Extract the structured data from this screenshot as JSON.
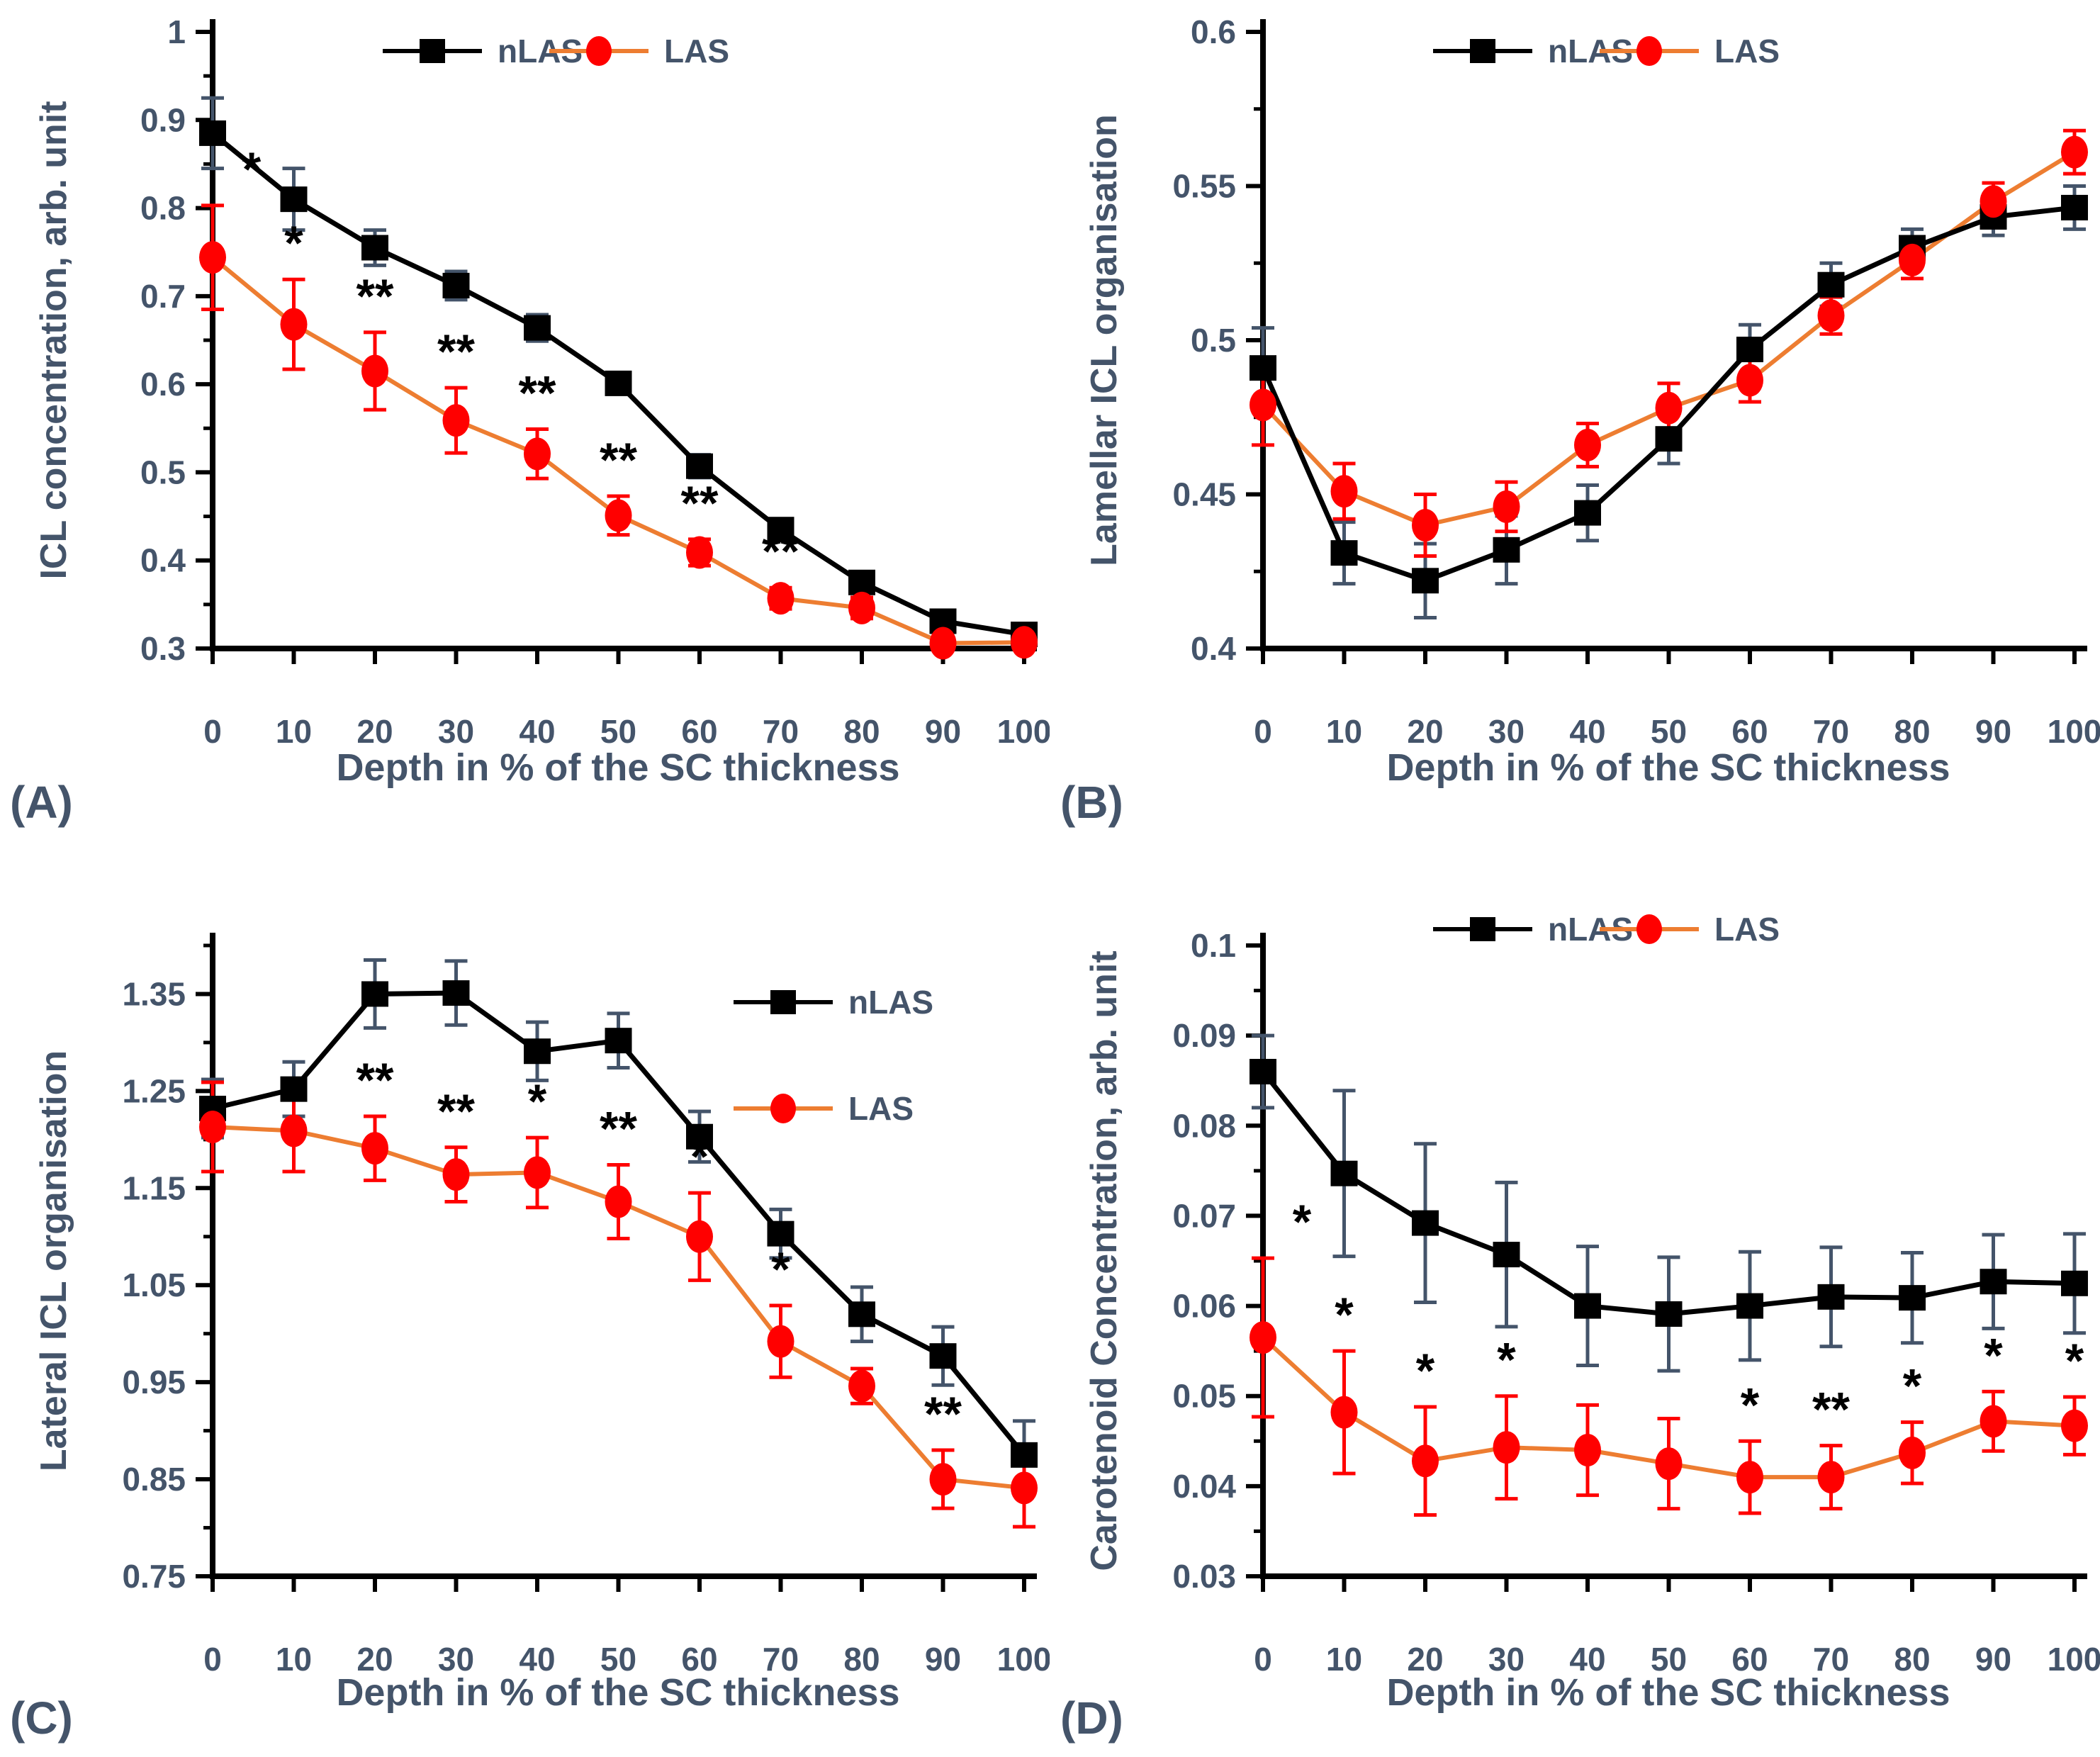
{
  "figure": {
    "xlabel": "Depth in % of the SC thickness",
    "legend_labels": [
      "nLAS",
      "LAS"
    ],
    "colors": {
      "text": "#44546A",
      "axis": "#000000",
      "sig_marker": "#000000",
      "nlas_line": "#000000",
      "nlas_marker": "#000000",
      "nlas_errorbar": "#44546A",
      "las_line": "#ED7D31",
      "las_marker": "#FF0000",
      "las_errorbar": "#FF0000"
    }
  },
  "chart_data": [
    {
      "type": "line",
      "panel_label": "(A)",
      "ylabel": "ICL concentration, arb. unit",
      "xlabel": "Depth in % of the SC thickness",
      "x": [
        0,
        10,
        20,
        30,
        40,
        50,
        60,
        70,
        80,
        90,
        100
      ],
      "xtick_labels": [
        "0",
        "10",
        "20",
        "30",
        "40",
        "50",
        "60",
        "70",
        "80",
        "90",
        "100"
      ],
      "ylim": [
        0.3,
        1.0
      ],
      "yticks": [
        0.3,
        0.4,
        0.5,
        0.6,
        0.7,
        0.8,
        0.9,
        1.0
      ],
      "ytick_labels": [
        "0.3",
        "0.4",
        "0.5",
        "0.6",
        "0.7",
        "0.8",
        "0.9",
        "1"
      ],
      "minor_tick_step": 0.05,
      "legend_position": "top",
      "grid": false,
      "series": [
        {
          "name": "nLAS",
          "values": [
            0.885,
            0.81,
            0.755,
            0.712,
            0.664,
            0.601,
            0.507,
            0.435,
            0.375,
            0.331,
            0.316
          ],
          "errors": [
            0.04,
            0.035,
            0.02,
            0.016,
            0.015,
            0.012,
            0.013,
            0.01,
            0.01,
            0.008,
            0.007
          ]
        },
        {
          "name": "LAS",
          "values": [
            0.744,
            0.668,
            0.615,
            0.559,
            0.521,
            0.451,
            0.409,
            0.357,
            0.346,
            0.306,
            0.307
          ],
          "errors": [
            0.059,
            0.051,
            0.044,
            0.037,
            0.028,
            0.022,
            0.015,
            0.012,
            0.012,
            0.008,
            0.008
          ]
        }
      ],
      "significance": [
        "*",
        "*",
        "**",
        "**",
        "**",
        "**",
        "**",
        "**",
        "",
        "",
        ""
      ]
    },
    {
      "type": "line",
      "panel_label": "(B)",
      "ylabel": "Lamellar ICL organisation",
      "xlabel": "Depth in % of the SC thickness",
      "x": [
        0,
        10,
        20,
        30,
        40,
        50,
        60,
        70,
        80,
        90,
        100
      ],
      "xtick_labels": [
        "0",
        "10",
        "20",
        "30",
        "40",
        "50",
        "60",
        "70",
        "80",
        "90",
        "100"
      ],
      "ylim": [
        0.4,
        0.6
      ],
      "yticks": [
        0.4,
        0.45,
        0.5,
        0.55,
        0.6
      ],
      "ytick_labels": [
        "0.4",
        "0.45",
        "0.5",
        "0.55",
        "0.6"
      ],
      "minor_tick_step": 0.025,
      "legend_position": "top",
      "grid": false,
      "series": [
        {
          "name": "nLAS",
          "values": [
            0.491,
            0.431,
            0.422,
            0.432,
            0.444,
            0.468,
            0.497,
            0.518,
            0.53,
            0.54,
            0.543
          ],
          "errors": [
            0.013,
            0.01,
            0.012,
            0.011,
            0.009,
            0.008,
            0.008,
            0.007,
            0.006,
            0.006,
            0.007
          ]
        },
        {
          "name": "LAS",
          "values": [
            0.479,
            0.451,
            0.44,
            0.446,
            0.466,
            0.478,
            0.487,
            0.508,
            0.526,
            0.545,
            0.561
          ],
          "errors": [
            0.013,
            0.009,
            0.01,
            0.008,
            0.007,
            0.008,
            0.007,
            0.006,
            0.006,
            0.006,
            0.007
          ]
        }
      ],
      "significance": [
        "",
        "",
        "",
        "",
        "",
        "",
        "",
        "",
        "",
        "",
        ""
      ]
    },
    {
      "type": "line",
      "panel_label": "(C)",
      "ylabel": "Lateral ICL organisation",
      "xlabel": "Depth in % of the SC thickness",
      "x": [
        0,
        10,
        20,
        30,
        40,
        50,
        60,
        70,
        80,
        90,
        100
      ],
      "xtick_labels": [
        "0",
        "10",
        "20",
        "30",
        "40",
        "50",
        "60",
        "70",
        "80",
        "90",
        "100"
      ],
      "ylim": [
        0.75,
        1.4
      ],
      "yticks": [
        0.75,
        0.85,
        0.95,
        1.05,
        1.15,
        1.25,
        1.35
      ],
      "ytick_labels": [
        "0.75",
        "0.85",
        "0.95",
        "1.05",
        "1.15",
        "1.25",
        "1.35"
      ],
      "minor_tick_step": 0.05,
      "legend_position": "right",
      "grid": false,
      "series": [
        {
          "name": "nLAS",
          "values": [
            1.232,
            1.252,
            1.35,
            1.351,
            1.291,
            1.302,
            1.203,
            1.103,
            1.02,
            0.977,
            0.875
          ],
          "errors": [
            0.03,
            0.028,
            0.035,
            0.033,
            0.03,
            0.028,
            0.026,
            0.025,
            0.028,
            0.03,
            0.035
          ]
        },
        {
          "name": "LAS",
          "values": [
            1.213,
            1.209,
            1.191,
            1.164,
            1.166,
            1.136,
            1.1,
            0.992,
            0.946,
            0.85,
            0.841
          ],
          "errors": [
            0.046,
            0.042,
            0.033,
            0.028,
            0.036,
            0.038,
            0.045,
            0.037,
            0.018,
            0.03,
            0.04
          ]
        }
      ],
      "significance": [
        "",
        "",
        "**",
        "**",
        "*",
        "**",
        "*",
        "*",
        "",
        "**",
        ""
      ]
    },
    {
      "type": "line",
      "panel_label": "(D)",
      "ylabel": "Carotenoid Concentration, arb. unit",
      "xlabel": "Depth in % of the SC thickness",
      "x": [
        0,
        10,
        20,
        30,
        40,
        50,
        60,
        70,
        80,
        90,
        100
      ],
      "xtick_labels": [
        "0",
        "10",
        "20",
        "30",
        "40",
        "50",
        "60",
        "70",
        "80",
        "90",
        "100"
      ],
      "ylim": [
        0.03,
        0.1
      ],
      "yticks": [
        0.03,
        0.04,
        0.05,
        0.06,
        0.07,
        0.08,
        0.09,
        0.1
      ],
      "ytick_labels": [
        "0.03",
        "0.04",
        "0.05",
        "0.06",
        "0.07",
        "0.08",
        "0.09",
        "0.1"
      ],
      "minor_tick_step": 0.005,
      "legend_position": "top",
      "grid": false,
      "series": [
        {
          "name": "nLAS",
          "values": [
            0.086,
            0.0747,
            0.0692,
            0.0657,
            0.06,
            0.0591,
            0.06,
            0.061,
            0.0609,
            0.0627,
            0.0625
          ],
          "errors": [
            0.004,
            0.0092,
            0.0088,
            0.008,
            0.0066,
            0.0063,
            0.006,
            0.0055,
            0.005,
            0.0052,
            0.0055
          ]
        },
        {
          "name": "LAS",
          "values": [
            0.0565,
            0.0482,
            0.0428,
            0.0443,
            0.044,
            0.0425,
            0.041,
            0.041,
            0.0437,
            0.0472,
            0.0467
          ],
          "errors": [
            0.0088,
            0.0068,
            0.006,
            0.0057,
            0.005,
            0.005,
            0.004,
            0.0035,
            0.0034,
            0.0033,
            0.0032
          ]
        }
      ],
      "significance": [
        "*",
        "*",
        "*",
        "*",
        "",
        "",
        "*",
        "**",
        "*",
        "*",
        "*"
      ]
    }
  ]
}
